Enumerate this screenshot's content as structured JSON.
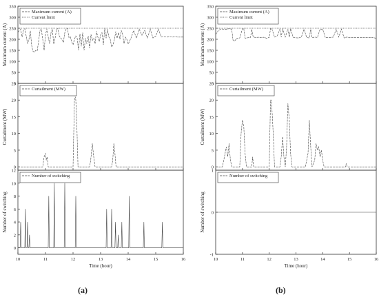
{
  "figure": {
    "panel_labels": [
      "(a)",
      "(b)"
    ]
  },
  "chart_data": [
    {
      "type": "line",
      "id": "a_current",
      "xlim": [
        10,
        16
      ],
      "ylim": [
        0,
        350
      ],
      "yticks": [
        0,
        50,
        100,
        150,
        200,
        250,
        300,
        350
      ],
      "ylabel": "Maximum current (A)",
      "legend": [
        "Maximum current (A)",
        "Current limit"
      ],
      "legend_position": "top-left",
      "limit": 250,
      "series": [
        {
          "name": "Maximum current (A)",
          "x": [
            10.0,
            10.05,
            10.1,
            10.15,
            10.2,
            10.25,
            10.3,
            10.35,
            10.4,
            10.45,
            10.5,
            10.55,
            10.6,
            10.65,
            10.7,
            10.75,
            10.8,
            10.85,
            10.9,
            10.95,
            11.0,
            11.05,
            11.1,
            11.15,
            11.2,
            11.25,
            11.3,
            11.35,
            11.4,
            11.45,
            11.5,
            11.55,
            11.6,
            11.65,
            11.7,
            11.75,
            11.8,
            11.85,
            11.9,
            11.95,
            12.0,
            12.05,
            12.1,
            12.15,
            12.2,
            12.25,
            12.3,
            12.35,
            12.4,
            12.45,
            12.5,
            12.55,
            12.6,
            12.65,
            12.7,
            12.75,
            12.8,
            12.85,
            12.9,
            12.95,
            13.0,
            13.05,
            13.1,
            13.15,
            13.2,
            13.25,
            13.3,
            13.35,
            13.4,
            13.45,
            13.5,
            13.55,
            13.6,
            13.65,
            13.7,
            13.75,
            13.8,
            13.85,
            13.9,
            13.95,
            14.0,
            14.1,
            14.2,
            14.3,
            14.4,
            14.5,
            14.6,
            14.7,
            14.8,
            14.9,
            15.0,
            15.1,
            15.2,
            15.3,
            15.4,
            15.5,
            15.6,
            15.7,
            15.8,
            15.9,
            16.0
          ],
          "y": [
            232,
            240,
            245,
            210,
            240,
            248,
            215,
            180,
            200,
            238,
            170,
            145,
            142,
            150,
            148,
            190,
            240,
            245,
            200,
            150,
            220,
            246,
            210,
            180,
            230,
            246,
            178,
            205,
            246,
            248,
            215,
            205,
            200,
            185,
            230,
            246,
            250,
            208,
            212,
            188,
            175,
            200,
            215,
            205,
            150,
            225,
            168,
            230,
            150,
            205,
            180,
            215,
            160,
            222,
            195,
            205,
            180,
            236,
            210,
            190,
            220,
            230,
            175,
            248,
            205,
            246,
            210,
            200,
            165,
            175,
            198,
            235,
            205,
            230,
            200,
            240,
            222,
            180,
            210,
            200,
            178,
            205,
            240,
            205,
            246,
            218,
            240,
            206,
            246,
            206,
            214,
            246,
            210,
            212,
            210,
            211,
            210,
            211,
            210,
            210,
            210
          ]
        },
        {
          "name": "Current limit",
          "x": [
            10,
            16
          ],
          "y": [
            250,
            250
          ]
        }
      ]
    },
    {
      "type": "line",
      "id": "a_curtailment",
      "xlim": [
        10,
        16
      ],
      "ylim": [
        -1,
        25
      ],
      "yticks": [
        0,
        5,
        10,
        15,
        20,
        25
      ],
      "ylabel": "Curtailment (MW)",
      "legend": [
        "Curtailment (MW)"
      ],
      "legend_position": "top-left",
      "series": [
        {
          "name": "Curtailment (MW)",
          "x": [
            10.0,
            10.9,
            10.95,
            11.0,
            11.03,
            11.06,
            11.1,
            11.15,
            12.0,
            12.05,
            12.08,
            12.1,
            12.14,
            12.18,
            12.6,
            12.64,
            12.7,
            12.75,
            12.8,
            13.4,
            13.44,
            13.48,
            13.52,
            13.56,
            16.0
          ],
          "y": [
            0,
            0,
            3,
            4,
            2,
            3,
            0,
            0,
            0,
            20,
            21,
            20,
            12,
            0,
            0,
            2,
            7,
            3,
            0,
            0,
            2,
            7,
            4,
            0,
            0
          ]
        }
      ]
    },
    {
      "type": "line",
      "id": "a_switching",
      "xlim": [
        10,
        16
      ],
      "ylim": [
        -1,
        12
      ],
      "yticks": [
        0,
        2,
        4,
        6,
        8,
        10,
        12
      ],
      "ylabel": "Number of switching",
      "xlabel": "Time (hour)",
      "xticks": [
        10,
        11,
        12,
        13,
        14,
        15,
        16
      ],
      "legend": [
        "Number of switching"
      ],
      "legend_position": "top-left",
      "series": [
        {
          "name": "Number of switching",
          "x": [
            10.0,
            10.08,
            10.1,
            10.12,
            10.25,
            10.27,
            10.29,
            10.33,
            10.35,
            10.37,
            10.4,
            10.42,
            10.44,
            11.1,
            11.12,
            11.14,
            11.3,
            11.32,
            11.34,
            11.68,
            11.7,
            11.72,
            12.08,
            12.1,
            12.12,
            13.2,
            13.22,
            13.24,
            13.38,
            13.4,
            13.42,
            13.52,
            13.54,
            13.56,
            13.62,
            13.64,
            13.66,
            13.75,
            13.77,
            13.79,
            14.02,
            14.04,
            14.06,
            14.55,
            14.57,
            14.59,
            15.22,
            15.24,
            15.26,
            16.0
          ],
          "y": [
            0,
            0,
            4,
            0,
            0,
            6,
            0,
            0,
            4,
            0,
            0,
            2,
            0,
            0,
            8,
            0,
            0,
            10,
            0,
            0,
            10,
            0,
            0,
            8,
            0,
            0,
            6,
            0,
            0,
            6,
            0,
            0,
            4,
            0,
            0,
            2,
            0,
            0,
            4,
            0,
            0,
            8,
            0,
            0,
            4,
            0,
            0,
            4,
            0,
            0
          ]
        }
      ]
    },
    {
      "type": "line",
      "id": "b_current",
      "xlim": [
        10,
        16
      ],
      "ylim": [
        0,
        350
      ],
      "yticks": [
        0,
        50,
        100,
        150,
        200,
        250,
        300,
        350
      ],
      "ylabel": "Maximum current (A)",
      "legend": [
        "Maximum current (A)",
        "Current limit"
      ],
      "legend_position": "top-left",
      "limit": 250,
      "series": [
        {
          "name": "Maximum current (A)",
          "x": [
            10.0,
            10.1,
            10.2,
            10.3,
            10.4,
            10.5,
            10.6,
            10.65,
            10.7,
            10.8,
            10.9,
            11.0,
            11.05,
            11.1,
            11.2,
            11.3,
            11.35,
            11.4,
            11.5,
            11.6,
            11.7,
            11.8,
            11.9,
            12.0,
            12.05,
            12.1,
            12.2,
            12.3,
            12.4,
            12.45,
            12.5,
            12.6,
            12.7,
            12.75,
            12.8,
            12.9,
            13.0,
            13.1,
            13.2,
            13.3,
            13.4,
            13.5,
            13.55,
            13.6,
            13.7,
            13.8,
            13.9,
            14.0,
            14.1,
            14.2,
            14.3,
            14.4,
            14.5,
            14.6,
            14.7,
            14.8,
            14.9,
            15.0,
            15.1,
            15.2,
            15.3,
            15.4,
            15.5,
            15.6,
            15.7,
            15.8,
            15.9,
            16.0
          ],
          "y": [
            222,
            240,
            247,
            246,
            245,
            248,
            246,
            195,
            192,
            205,
            206,
            248,
            248,
            205,
            207,
            208,
            245,
            210,
            208,
            209,
            207,
            209,
            205,
            208,
            248,
            248,
            210,
            215,
            246,
            210,
            248,
            210,
            246,
            210,
            248,
            208,
            207,
            206,
            210,
            246,
            208,
            206,
            246,
            207,
            210,
            208,
            246,
            246,
            207,
            208,
            208,
            210,
            246,
            210,
            246,
            206,
            210,
            207,
            208,
            208,
            208,
            208,
            208,
            208,
            208,
            208,
            207,
            205
          ]
        },
        {
          "name": "Current limit",
          "x": [
            10,
            16
          ],
          "y": [
            250,
            250
          ]
        }
      ]
    },
    {
      "type": "line",
      "id": "b_curtailment",
      "xlim": [
        10,
        16
      ],
      "ylim": [
        -1,
        25
      ],
      "yticks": [
        0,
        5,
        10,
        15,
        20,
        25
      ],
      "ylabel": "Curtailment (MW)",
      "legend": [
        "Curtailment (MW)"
      ],
      "legend_position": "top-left",
      "series": [
        {
          "name": "Curtailment (MW)",
          "x": [
            10.0,
            10.25,
            10.3,
            10.35,
            10.4,
            10.45,
            10.5,
            10.55,
            10.6,
            10.9,
            10.95,
            11.0,
            11.05,
            11.1,
            11.15,
            11.35,
            11.38,
            11.42,
            12.0,
            12.05,
            12.08,
            12.12,
            12.16,
            12.2,
            12.4,
            12.45,
            12.5,
            12.55,
            12.6,
            12.65,
            12.7,
            12.75,
            12.8,
            12.85,
            13.35,
            13.45,
            13.5,
            13.55,
            13.6,
            13.7,
            13.75,
            13.8,
            13.85,
            13.9,
            13.95,
            14.0,
            14.05,
            14.85,
            14.88,
            14.91,
            16.0
          ],
          "y": [
            0,
            0,
            2,
            4,
            6,
            3,
            7,
            2,
            0,
            0,
            10,
            14,
            12,
            4,
            0,
            0,
            3,
            0,
            0,
            20,
            20,
            15,
            8,
            0,
            0,
            3,
            9,
            3,
            0,
            6,
            19,
            14,
            4,
            0,
            0,
            4,
            14,
            6,
            0,
            2,
            7,
            5,
            6,
            3,
            5,
            2,
            0,
            0,
            1,
            0,
            0
          ]
        }
      ]
    },
    {
      "type": "line",
      "id": "b_switching",
      "xlim": [
        10,
        16
      ],
      "ylim": [
        -1,
        1
      ],
      "yticks": [
        -1,
        0,
        1
      ],
      "ylabel": "Number of switching",
      "xlabel": "Time (hour)",
      "xticks": [
        10,
        11,
        12,
        13,
        14,
        15,
        16
      ],
      "legend": [
        "Number of switching"
      ],
      "legend_position": "top-left",
      "series": [
        {
          "name": "Number of switching",
          "x": [
            10,
            16
          ],
          "y": [
            0,
            0
          ]
        }
      ]
    }
  ]
}
